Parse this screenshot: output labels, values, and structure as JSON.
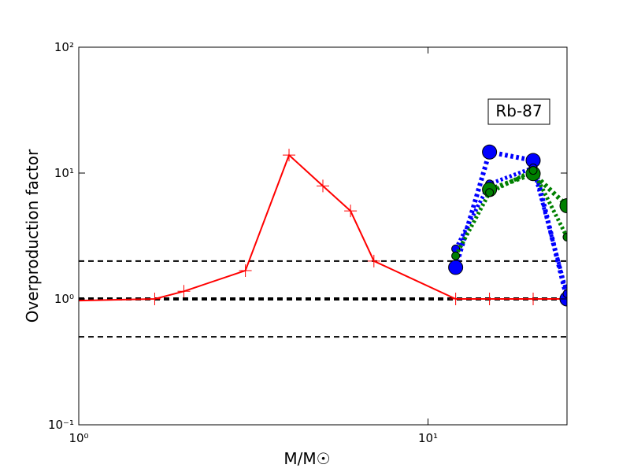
{
  "chart_data": {
    "type": "line",
    "xlabel": "M/M☉",
    "ylabel": "Overproduction factor",
    "annotation": "Rb-87",
    "xscale": "log",
    "yscale": "log",
    "xlim": [
      1,
      25
    ],
    "ylim": [
      0.1,
      100
    ],
    "xticks": [
      {
        "value": 1,
        "label": "10⁰"
      },
      {
        "value": 10,
        "label": "10¹"
      }
    ],
    "yticks": [
      {
        "value": 0.1,
        "label": "10⁻¹"
      },
      {
        "value": 1,
        "label": "10⁰"
      },
      {
        "value": 10,
        "label": "10¹"
      },
      {
        "value": 100,
        "label": "10²"
      }
    ],
    "hlines": [
      {
        "value": 2,
        "color": "#000000",
        "width": 2
      },
      {
        "value": 1,
        "color": "#000000",
        "width": 4
      },
      {
        "value": 0.5,
        "color": "#000000",
        "width": 2
      }
    ],
    "series": [
      {
        "color": "#ff0000",
        "linestyle": "solid",
        "marker": "+",
        "width": 2,
        "x": [
          1,
          1.65,
          2,
          3,
          4,
          5,
          6,
          7,
          12,
          15,
          20,
          25
        ],
        "values": [
          0.97,
          1.0,
          1.15,
          1.68,
          13.9,
          7.9,
          5.0,
          2.0,
          1.0,
          1.0,
          1.0,
          1.0
        ]
      },
      {
        "color": "#0000ff",
        "linestyle": "dotted",
        "marker": "o",
        "markersize": 9,
        "width": 6,
        "x": [
          12,
          15,
          20,
          25
        ],
        "values": [
          1.78,
          14.7,
          12.6,
          1.0
        ]
      },
      {
        "color": "#0000ff",
        "linestyle": "dotted",
        "marker": "o",
        "markersize": 5,
        "width": 5,
        "x": [
          12,
          15,
          20,
          25
        ],
        "values": [
          2.5,
          8.2,
          11,
          1.1
        ]
      },
      {
        "color": "#008000",
        "linestyle": "dotted",
        "marker": "o",
        "markersize": 9,
        "width": 6,
        "x": [
          15,
          20,
          25
        ],
        "values": [
          7.4,
          9.9,
          5.5
        ]
      },
      {
        "color": "#008000",
        "linestyle": "dotted",
        "marker": "o",
        "markersize": 5,
        "width": 5,
        "x": [
          12,
          15,
          20,
          25
        ],
        "values": [
          2.2,
          7.0,
          10.5,
          3.1
        ]
      }
    ]
  }
}
